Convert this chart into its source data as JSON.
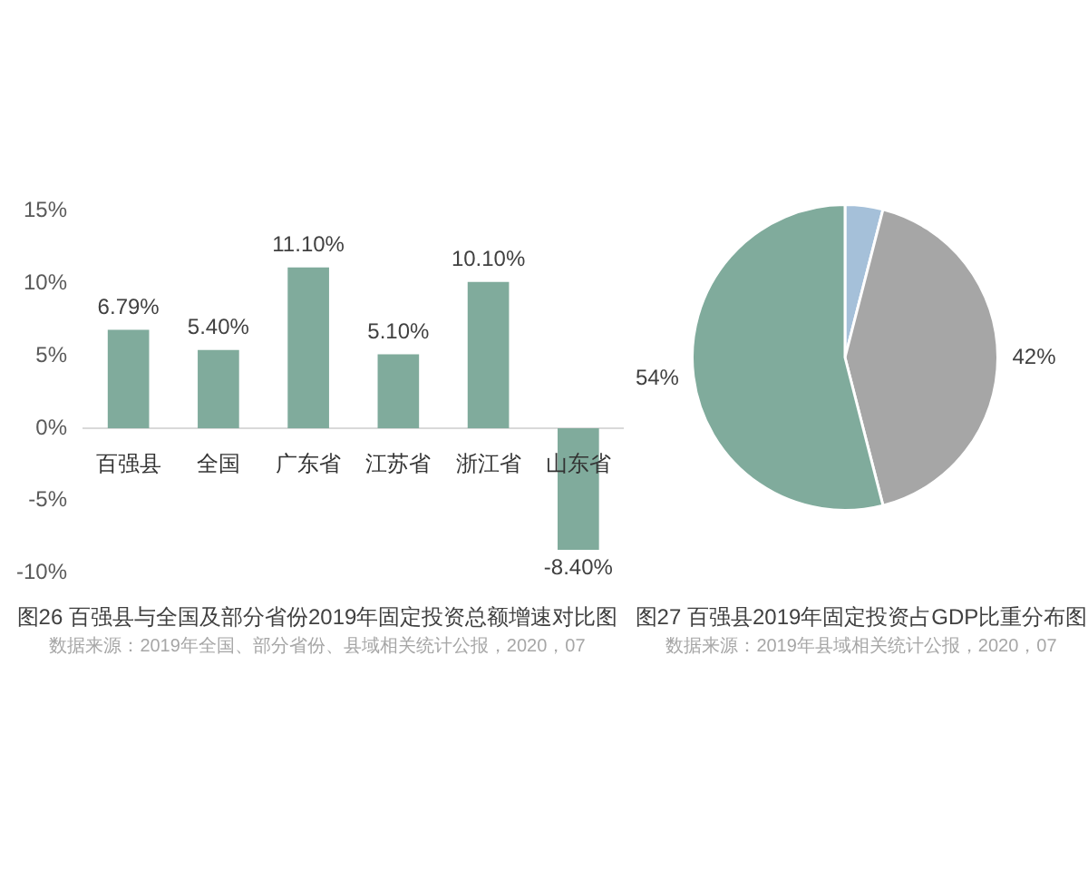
{
  "chart_data": [
    {
      "type": "bar",
      "title": "图26 百强县与全国及部分省份2019年固定投资总额增速对比图",
      "annotations": [
        "数据来源：2019年全国、部分省份、县域相关统计公报，2020，07"
      ],
      "categories": [
        "百强县",
        "全国",
        "广东省",
        "江苏省",
        "浙江省",
        "山东省"
      ],
      "values": [
        6.79,
        5.4,
        11.1,
        5.1,
        10.1,
        -8.4
      ],
      "value_labels": [
        "6.79%",
        "5.40%",
        "11.10%",
        "5.10%",
        "10.10%",
        "-8.40%"
      ],
      "color": "#80ab9c",
      "ylim": [
        -10,
        15
      ],
      "yticks": [
        {
          "value": -10,
          "label": "-10%"
        },
        {
          "value": -5,
          "label": "-5%"
        },
        {
          "value": 0,
          "label": "0%"
        },
        {
          "value": 5,
          "label": "5%"
        },
        {
          "value": 10,
          "label": "10%"
        },
        {
          "value": 15,
          "label": "15%"
        }
      ],
      "grid": false,
      "legend": false
    },
    {
      "type": "pie",
      "title": "图27 百强县2019年固定投资占GDP比重分布图",
      "annotations": [
        "数据来源：2019年县域相关统计公报，2020，07"
      ],
      "categories": [
        null,
        null,
        null
      ],
      "values": [
        4,
        42,
        54
      ],
      "colors": [
        "#a5c0d9",
        "#a6a6a6",
        "#80ab9c"
      ],
      "value_labels": [
        null,
        "42%",
        "54%"
      ],
      "legend": false
    }
  ]
}
